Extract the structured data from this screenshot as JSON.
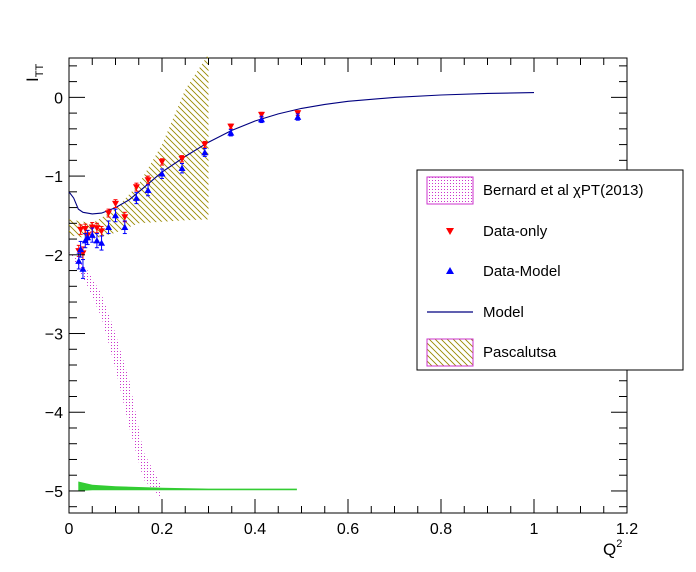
{
  "chart_data": {
    "type": "scatter",
    "xlabel": "Q",
    "xlabel_sup": "2",
    "ylabel": "I",
    "ylabel_sub": "TT",
    "xlim": [
      0,
      1.2
    ],
    "ylim": [
      -5.28,
      0.5
    ],
    "x_ticks": [
      "0",
      "0.2",
      "0.4",
      "0.6",
      "0.8",
      "1",
      "1.2"
    ],
    "y_ticks": [
      "0",
      "−1",
      "−2",
      "−3",
      "−4",
      "−5"
    ],
    "legend": {
      "position": "right",
      "entries": [
        "Bernard et al χPT(2013)",
        "Data-only",
        "Data-Model",
        "Model",
        "Pascalutsa"
      ]
    },
    "colors": {
      "data_only": "#ff0000",
      "data_model": "#0000ff",
      "model": "#000080",
      "bernard": "#cc33cc",
      "pascalutsa": "#998800",
      "green_band": "#33cc33"
    },
    "series": [
      {
        "name": "Data-only",
        "marker": "triangle-down",
        "x": [
          0.021,
          0.025,
          0.03,
          0.035,
          0.04,
          0.05,
          0.06,
          0.07,
          0.085,
          0.1,
          0.12,
          0.145,
          0.17,
          0.2,
          0.243,
          0.292,
          0.348,
          0.414,
          0.492
        ],
        "y": [
          -1.95,
          -1.68,
          -1.98,
          -1.67,
          -1.75,
          -1.65,
          -1.66,
          -1.7,
          -1.47,
          -1.35,
          -1.52,
          -1.14,
          -1.05,
          -0.82,
          -0.78,
          -0.6,
          -0.37,
          -0.22,
          -0.2
        ],
        "err": [
          0.07,
          0.06,
          0.08,
          0.06,
          0.06,
          0.06,
          0.06,
          0.06,
          0.05,
          0.05,
          0.06,
          0.05,
          0.05,
          0.04,
          0.04,
          0.04,
          0.03,
          0.03,
          0.03
        ]
      },
      {
        "name": "Data-Model",
        "marker": "triangle-up",
        "x": [
          0.021,
          0.025,
          0.03,
          0.035,
          0.04,
          0.05,
          0.06,
          0.07,
          0.085,
          0.1,
          0.12,
          0.145,
          0.17,
          0.2,
          0.243,
          0.292,
          0.348,
          0.414,
          0.492
        ],
        "y": [
          -2.08,
          -1.93,
          -2.18,
          -1.82,
          -1.78,
          -1.75,
          -1.82,
          -1.85,
          -1.65,
          -1.5,
          -1.65,
          -1.28,
          -1.18,
          -0.97,
          -0.9,
          -0.7,
          -0.45,
          -0.28,
          -0.25
        ],
        "err": [
          0.1,
          0.1,
          0.12,
          0.09,
          0.09,
          0.09,
          0.09,
          0.09,
          0.08,
          0.08,
          0.08,
          0.07,
          0.07,
          0.06,
          0.06,
          0.05,
          0.04,
          0.04,
          0.04
        ]
      },
      {
        "name": "Model",
        "type": "line",
        "x": [
          0.0,
          0.01,
          0.02,
          0.03,
          0.05,
          0.07,
          0.1,
          0.13,
          0.16,
          0.2,
          0.25,
          0.3,
          0.35,
          0.4,
          0.45,
          0.5,
          0.55,
          0.6,
          0.7,
          0.8,
          0.9,
          1.0
        ],
        "y": [
          -1.2,
          -1.28,
          -1.42,
          -1.46,
          -1.48,
          -1.47,
          -1.4,
          -1.3,
          -1.15,
          -0.95,
          -0.75,
          -0.57,
          -0.42,
          -0.3,
          -0.21,
          -0.14,
          -0.09,
          -0.05,
          0.0,
          0.03,
          0.05,
          0.06
        ]
      }
    ],
    "bands": [
      {
        "name": "Bernard et al χPT(2013)",
        "upper": [
          [
            0.0,
            -1.95
          ],
          [
            0.04,
            -2.2
          ],
          [
            0.07,
            -2.5
          ],
          [
            0.1,
            -3.0
          ],
          [
            0.13,
            -3.6
          ],
          [
            0.16,
            -4.5
          ],
          [
            0.2,
            -4.95
          ]
        ],
        "lower": [
          [
            0.0,
            -1.95
          ],
          [
            0.04,
            -2.4
          ],
          [
            0.07,
            -2.8
          ],
          [
            0.1,
            -3.45
          ],
          [
            0.13,
            -4.2
          ],
          [
            0.16,
            -4.85
          ],
          [
            0.2,
            -5.1
          ]
        ]
      },
      {
        "name": "Pascalutsa",
        "upper": [
          [
            0.0,
            -1.55
          ],
          [
            0.05,
            -1.6
          ],
          [
            0.1,
            -1.42
          ],
          [
            0.15,
            -1.1
          ],
          [
            0.2,
            -0.6
          ],
          [
            0.25,
            0.1
          ],
          [
            0.3,
            0.55
          ]
        ],
        "lower": [
          [
            0.0,
            -1.75
          ],
          [
            0.05,
            -1.8
          ],
          [
            0.1,
            -1.72
          ],
          [
            0.15,
            -1.6
          ],
          [
            0.2,
            -1.58
          ],
          [
            0.25,
            -1.56
          ],
          [
            0.3,
            -1.55
          ]
        ]
      },
      {
        "name": "green",
        "upper": [
          [
            0.02,
            -4.88
          ],
          [
            0.05,
            -4.92
          ],
          [
            0.1,
            -4.94
          ],
          [
            0.2,
            -4.96
          ],
          [
            0.3,
            -4.97
          ],
          [
            0.49,
            -4.97
          ]
        ],
        "lower": [
          [
            0.02,
            -5.0
          ],
          [
            0.05,
            -4.99
          ],
          [
            0.1,
            -4.99
          ],
          [
            0.2,
            -4.99
          ],
          [
            0.3,
            -4.99
          ],
          [
            0.49,
            -4.99
          ]
        ]
      }
    ]
  }
}
